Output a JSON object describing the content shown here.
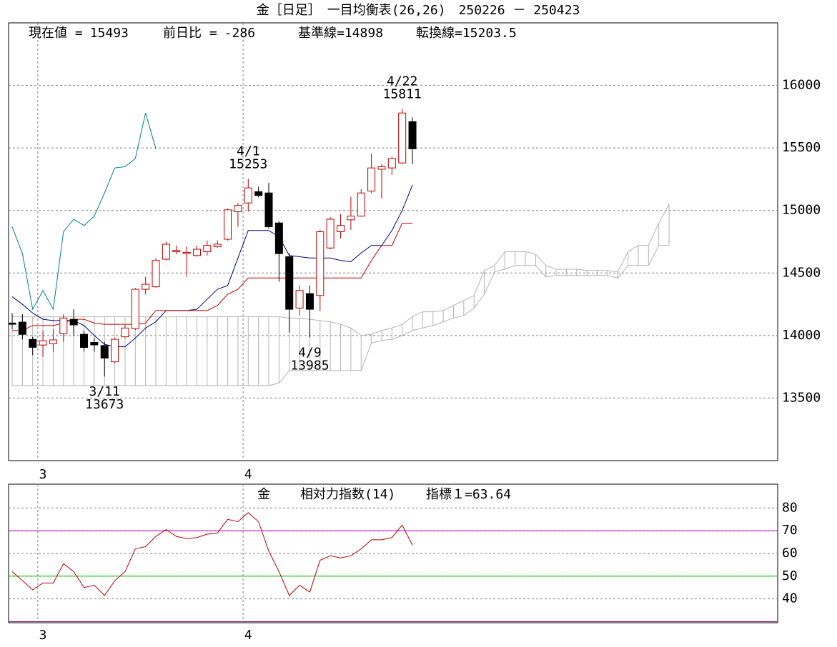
{
  "chart_data": [
    {
      "type": "candlestick",
      "title": "金［日足］　一目均衡表(26,26)　250226 － 250423",
      "info": [
        {
          "label": "現在値 =",
          "value": 15493
        },
        {
          "label": "前日比 =",
          "value": -286
        },
        {
          "label": "基準線=",
          "value": 14898
        },
        {
          "label": "転換線=",
          "value": 15203.5
        }
      ],
      "categories": [
        null,
        null,
        null,
        "3",
        null,
        null,
        null,
        null,
        null,
        null,
        null,
        null,
        null,
        null,
        null,
        null,
        null,
        null,
        null,
        null,
        null,
        null,
        null,
        "4",
        null,
        null,
        null,
        null,
        null,
        null,
        null,
        null,
        null,
        null,
        null,
        null,
        null,
        null,
        null,
        null
      ],
      "open": [
        14100,
        14107,
        13969,
        13924,
        13935,
        14015,
        14130,
        14010,
        13945,
        13920,
        13790,
        13990,
        14055,
        14370,
        14390,
        14610,
        14670,
        14655,
        14640,
        14670,
        14710,
        14770,
        14990,
        15060,
        15150,
        15140,
        14900,
        14630,
        14220,
        14335,
        14320,
        14700,
        14830,
        14925,
        14955,
        15155,
        15330,
        15340,
        15380,
        15710
      ],
      "high": [
        14180,
        14170,
        13990,
        14040,
        14050,
        14170,
        14210,
        14040,
        13980,
        13950,
        13980,
        14085,
        14380,
        14470,
        14620,
        14750,
        14720,
        14710,
        14720,
        14760,
        14760,
        15015,
        15060,
        15253,
        15190,
        15220,
        14915,
        14655,
        14400,
        14400,
        14845,
        14945,
        14970,
        15110,
        15170,
        15455,
        15370,
        15430,
        15811,
        15745
      ],
      "low": [
        14050,
        13969,
        13843,
        13830,
        13870,
        13950,
        14000,
        13870,
        13870,
        13673,
        13780,
        13980,
        14045,
        14330,
        14380,
        14600,
        14650,
        14470,
        14630,
        14640,
        14700,
        14760,
        14870,
        14990,
        15105,
        14855,
        14430,
        14025,
        14160,
        13985,
        14195,
        14690,
        14775,
        14845,
        14950,
        15140,
        15095,
        15285,
        15370,
        15370
      ],
      "close": [
        14090,
        14009,
        13906,
        13958,
        13965,
        14140,
        14085,
        13905,
        13925,
        13820,
        13970,
        14060,
        14370,
        14410,
        14600,
        14730,
        14680,
        14665,
        14690,
        14720,
        14730,
        15005,
        15040,
        15180,
        15120,
        14870,
        14655,
        14210,
        14360,
        14210,
        14830,
        14930,
        14880,
        14955,
        15140,
        15340,
        15350,
        15415,
        15779,
        15493
      ],
      "up_color": "#c00000",
      "down_color": "#000000",
      "series": [
        {
          "color": "#000080",
          "values": [
            14310,
            14250,
            14180,
            14130,
            14120,
            14120,
            14120,
            14080,
            14000,
            13930,
            13910,
            13910,
            13980,
            14060,
            14110,
            14200,
            14200,
            14200,
            14210,
            14290,
            14370,
            14400,
            14620,
            14840,
            14840,
            14840,
            14790,
            14640,
            14630,
            14620,
            14620,
            14620,
            14600,
            14590,
            14660,
            14720,
            14720,
            14840,
            15000,
            15203.5
          ]
        },
        {
          "color": "#c00000",
          "values": [
            14040,
            14040,
            14080,
            14080,
            14080,
            14100,
            14130,
            14130,
            14100,
            14090,
            14090,
            14090,
            14090,
            14100,
            14200,
            14200,
            14200,
            14200,
            14200,
            14200,
            14240,
            14330,
            14370,
            14460,
            14460,
            14460,
            14460,
            14460,
            14460,
            14460,
            14460,
            14460,
            14460,
            14460,
            14460,
            14600,
            14720,
            14720,
            14898,
            14898
          ]
        },
        {
          "color": "#008080",
          "values": [
            14870,
            14655,
            14210,
            14360,
            14210,
            14830,
            14930,
            14880,
            14955,
            15140,
            15340,
            15350,
            15415,
            15779,
            15493,
            null,
            null,
            null,
            null,
            null,
            null,
            null,
            null,
            null,
            null,
            null,
            null,
            null,
            null,
            null,
            null,
            null,
            null,
            null,
            null,
            null,
            null,
            null,
            null,
            null
          ]
        }
      ],
      "cloud": {
        "color": "#b4b4b4",
        "span_a": [
          14150,
          14150,
          14150,
          14150,
          14150,
          14150,
          14150,
          14150,
          14150,
          14150,
          14150,
          14150,
          14150,
          14150,
          14150,
          14150,
          14150,
          14150,
          14150,
          14150,
          14150,
          14150,
          14150,
          14150,
          14150,
          14150,
          14150,
          14140,
          14140,
          14130,
          14120,
          14110,
          14090,
          14060,
          14000,
          14010,
          14040,
          14060,
          14090,
          14150,
          14190,
          14190,
          14200,
          14240,
          14280,
          14320,
          14520,
          14560,
          14670,
          14670,
          14670,
          14650,
          14560,
          14530,
          14530,
          14530,
          14520,
          14520,
          14520,
          14510,
          14670,
          14720,
          14720,
          14900,
          15050
        ],
        "span_b": [
          13600,
          13600,
          13600,
          13600,
          13600,
          13600,
          13600,
          13600,
          13600,
          13600,
          13600,
          13600,
          13600,
          13600,
          13600,
          13600,
          13600,
          13600,
          13600,
          13600,
          13600,
          13600,
          13600,
          13600,
          13600,
          13600,
          13620,
          13720,
          13720,
          13720,
          13720,
          13720,
          13720,
          13720,
          13720,
          13940,
          13960,
          13970,
          14000,
          14040,
          14060,
          14080,
          14110,
          14140,
          14160,
          14220,
          14330,
          14510,
          14530,
          14560,
          14560,
          14560,
          14470,
          14480,
          14480,
          14480,
          14480,
          14480,
          14480,
          14460,
          14560,
          14560,
          14560,
          14720,
          14720
        ]
      },
      "annotations": [
        {
          "date": "3/11",
          "value": 13673
        },
        {
          "date": "4/1",
          "value": 15253
        },
        {
          "date": "4/9",
          "value": 13985
        },
        {
          "date": "4/22",
          "value": 15811
        }
      ],
      "ylim": [
        13000,
        16500
      ],
      "yticks": [
        13500,
        14000,
        14500,
        15000,
        15500,
        16000
      ],
      "grid": true
    },
    {
      "type": "line",
      "name": "金",
      "indicator": "相対力指数(14)",
      "value_label": "指標１=",
      "last_value": 63.64,
      "values": [
        52,
        48,
        44,
        47,
        47,
        55.5,
        52,
        45,
        46,
        41.5,
        48,
        52,
        62,
        63,
        67.5,
        70.5,
        67.5,
        66.5,
        67,
        68.5,
        69,
        75,
        74,
        78,
        74,
        61,
        52,
        41.5,
        46,
        43,
        57,
        59,
        58,
        59,
        62,
        66,
        66,
        67,
        72.5,
        63.64
      ],
      "color": "#c00000",
      "hlines": [
        {
          "value": 70,
          "color": "#c000c0"
        },
        {
          "value": 50,
          "color": "#00c000"
        },
        {
          "value": 30,
          "color": "#800080"
        }
      ],
      "ylim": [
        29.5,
        90.5
      ],
      "yticks": [
        40,
        50,
        60,
        70,
        80
      ],
      "grid": true
    }
  ]
}
